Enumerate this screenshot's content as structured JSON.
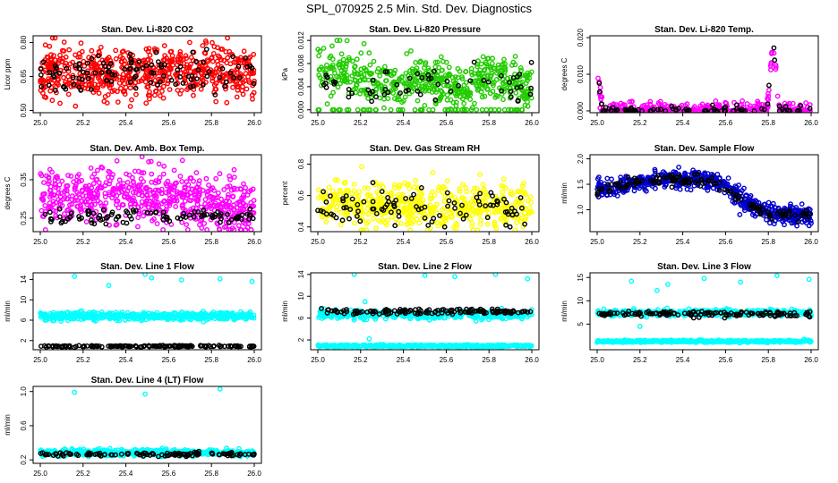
{
  "figure_title": "SPL_070925  2.5 Min. Std. Dev. Diagnostics",
  "colors": {
    "red": "#ff0000",
    "green": "#22cc00",
    "magenta": "#ff00ff",
    "yellow": "#ffff00",
    "blue": "#0000cc",
    "cyan": "#00ffff",
    "black": "#000000"
  },
  "chart_data": [
    {
      "type": "scatter",
      "title": "Stan. Dev. Li-820 CO2",
      "ylabel": "Licor ppm",
      "xlim": [
        25.0,
        26.0
      ],
      "ylim": [
        0.49,
        0.83
      ],
      "xticks": [
        "25.0",
        "25.2",
        "25.4",
        "25.6",
        "25.8",
        "26.0"
      ],
      "yticks": [
        "0.50",
        "0.65",
        "0.80"
      ],
      "series": [
        {
          "name": "main",
          "color": "red",
          "n": 640,
          "mode": "band",
          "base": [
            0.67
          ],
          "spread": 0.06,
          "min": 0.5,
          "max": 0.82,
          "seed": 11
        },
        {
          "name": "overlay",
          "color": "black",
          "n": 110,
          "mode": "band",
          "base": [
            0.66
          ],
          "spread": 0.05,
          "min": 0.52,
          "max": 0.81,
          "seed": 12
        }
      ]
    },
    {
      "type": "scatter",
      "title": "Stan. Dev. Li-820 Pressure",
      "ylabel": "kPa",
      "xlim": [
        25.0,
        26.0
      ],
      "ylim": [
        -0.0005,
        0.0128
      ],
      "xticks": [
        "25.0",
        "25.2",
        "25.4",
        "25.6",
        "25.8",
        "26.0"
      ],
      "yticks": [
        "0.000",
        "0.004",
        "0.008",
        "0.012"
      ],
      "series": [
        {
          "name": "main",
          "color": "green",
          "n": 560,
          "mode": "band",
          "base": [
            0.0075,
            0.0068,
            0.006,
            0.004,
            0.0045,
            0.006,
            0.0045,
            0.0035,
            0.006,
            0.0055,
            0.0035
          ],
          "spread": 0.002,
          "min": 0.0,
          "max": 0.012,
          "seed": 21
        },
        {
          "name": "zero-line",
          "color": "green",
          "n": 50,
          "mode": "band",
          "base": [
            0.0
          ],
          "spread": 0.0,
          "min": 0.0,
          "max": 0.012,
          "seed": 22
        },
        {
          "name": "overlay",
          "color": "black",
          "n": 60,
          "mode": "band",
          "base": [
            0.0048
          ],
          "spread": 0.0015,
          "min": 0.0008,
          "max": 0.012,
          "seed": 23
        }
      ]
    },
    {
      "type": "scatter",
      "title": "Stan. Dev. Li-820 Temp.",
      "ylabel": "degrees C",
      "xlim": [
        25.0,
        26.0
      ],
      "ylim": [
        -0.0005,
        0.0205
      ],
      "xticks": [
        "25.0",
        "25.2",
        "25.4",
        "25.6",
        "25.8",
        "26.0"
      ],
      "yticks": [
        "0.000",
        "0.010",
        "0.020"
      ],
      "series": [
        {
          "name": "main",
          "color": "magenta",
          "n": 420,
          "mode": "band",
          "base": [
            0.011,
            0.006,
            0.001,
            0.0,
            0.0,
            0.0,
            0.0,
            0.0,
            0.0,
            0.0,
            0.0,
            0.0,
            0.0,
            0.0,
            0.0,
            0.0,
            0.0,
            0.0,
            0.0,
            0.0,
            0.0,
            0.0,
            0.0,
            0.0,
            0.0,
            0.0,
            0.0,
            0.0,
            0.0,
            0.0,
            0.0,
            0.0,
            0.0,
            0.0,
            0.0,
            0.0,
            0.0,
            0.0,
            0.0,
            0.0,
            0.0,
            0.0,
            0.0,
            0.0,
            0.0,
            0.0,
            0.0,
            0.0,
            0.0,
            0.0,
            0.0,
            0.0,
            0.0,
            0.0,
            0.0,
            0.0,
            0.0,
            0.0,
            0.0,
            0.0,
            0.0,
            0.0,
            0.0,
            0.0,
            0.0,
            0.0,
            0.0,
            0.0,
            0.0,
            0.0,
            0.0,
            0.0,
            0.003,
            0.012,
            0.019,
            0.013,
            0.003,
            0.0,
            0.0,
            0.0,
            0.0,
            0.0,
            0.0,
            0.0,
            0.0,
            0.0,
            0.0,
            0.0,
            0.0,
            0.0,
            0.0
          ],
          "spread": 0.0012,
          "min": 0.0,
          "max": 0.0198,
          "seed": 31
        },
        {
          "name": "overlay",
          "color": "black",
          "n": 90,
          "mode": "band",
          "base": [
            0.012,
            0.006,
            0.001,
            0.0,
            0.0,
            0.0,
            0.0,
            0.0,
            0.0,
            0.0,
            0.0,
            0.0,
            0.0,
            0.0,
            0.0,
            0.0,
            0.0,
            0.0,
            0.0,
            0.0,
            0.0,
            0.0,
            0.0,
            0.0,
            0.0,
            0.0,
            0.0,
            0.0,
            0.0,
            0.0,
            0.0,
            0.0,
            0.0,
            0.0,
            0.0,
            0.0,
            0.0,
            0.0,
            0.0,
            0.0,
            0.0,
            0.0,
            0.0,
            0.0,
            0.0,
            0.0,
            0.0,
            0.0,
            0.0,
            0.0,
            0.0,
            0.0,
            0.0,
            0.0,
            0.0,
            0.0,
            0.0,
            0.0,
            0.0,
            0.0,
            0.0,
            0.0,
            0.0,
            0.0,
            0.0,
            0.0,
            0.0,
            0.0,
            0.0,
            0.0,
            0.0,
            0.0,
            0.004,
            0.013,
            0.02,
            0.012,
            0.002,
            0.0,
            0.0,
            0.0,
            0.0,
            0.0,
            0.0,
            0.0,
            0.0,
            0.0,
            0.0,
            0.0,
            0.0,
            0.0,
            0.0
          ],
          "spread": 0.0008,
          "min": 0.0,
          "max": 0.0198,
          "seed": 32
        }
      ]
    },
    {
      "type": "scatter",
      "title": "Stan. Dev. Amb. Box Temp.",
      "ylabel": "degrees C",
      "xlim": [
        25.0,
        26.0
      ],
      "ylim": [
        0.215,
        0.415
      ],
      "xticks": [
        "25.0",
        "25.2",
        "25.4",
        "25.6",
        "25.8",
        "26.0"
      ],
      "yticks": [
        "0.25",
        "0.35"
      ],
      "series": [
        {
          "name": "main",
          "color": "magenta",
          "n": 620,
          "mode": "band",
          "base": [
            0.295,
            0.31,
            0.315,
            0.3,
            0.285,
            0.27
          ],
          "spread": 0.035,
          "min": 0.22,
          "max": 0.41,
          "seed": 41
        },
        {
          "name": "overlay",
          "color": "black",
          "n": 100,
          "mode": "band",
          "base": [
            0.255
          ],
          "spread": 0.01,
          "min": 0.235,
          "max": 0.3,
          "seed": 42
        }
      ]
    },
    {
      "type": "scatter",
      "title": "Stan. Dev. Gas Stream RH",
      "ylabel": "percent",
      "xlim": [
        25.0,
        26.0
      ],
      "ylim": [
        0.37,
        0.86
      ],
      "xticks": [
        "25.0",
        "25.2",
        "25.4",
        "25.6",
        "25.8",
        "26.0"
      ],
      "yticks": [
        "0.4",
        "0.6",
        "0.8"
      ],
      "series": [
        {
          "name": "main",
          "color": "yellow",
          "n": 560,
          "mode": "band",
          "base": [
            0.54
          ],
          "spread": 0.07,
          "min": 0.38,
          "max": 0.85,
          "seed": 51
        },
        {
          "name": "overlay",
          "color": "black",
          "n": 95,
          "mode": "band",
          "base": [
            0.52
          ],
          "spread": 0.06,
          "min": 0.4,
          "max": 0.85,
          "seed": 52
        }
      ]
    },
    {
      "type": "scatter",
      "title": "Stan. Dev. Sample Flow",
      "ylabel": "ml/min",
      "xlim": [
        25.0,
        26.0
      ],
      "ylim": [
        0.57,
        2.08
      ],
      "xticks": [
        "25.0",
        "25.2",
        "25.4",
        "25.6",
        "25.8",
        "26.0"
      ],
      "yticks": [
        "1.0",
        "1.5",
        "2.0"
      ],
      "series": [
        {
          "name": "main",
          "color": "blue",
          "n": 620,
          "mode": "band",
          "base": [
            1.4,
            1.45,
            1.55,
            1.6,
            1.6,
            1.6,
            1.5,
            1.15,
            0.95,
            0.9,
            0.88
          ],
          "spread": 0.09,
          "min": 0.6,
          "max": 2.05,
          "seed": 61
        },
        {
          "name": "overlay",
          "color": "black",
          "n": 130,
          "mode": "band",
          "base": [
            1.4,
            1.45,
            1.55,
            1.6,
            1.6,
            1.58,
            1.45,
            1.1,
            0.92,
            0.9,
            0.88
          ],
          "spread": 0.05,
          "min": 0.6,
          "max": 2.05,
          "seed": 62
        }
      ]
    },
    {
      "type": "scatter",
      "title": "Stan. Dev. Line 1 Flow",
      "ylabel": "ml/min",
      "xlim": [
        25.0,
        26.0
      ],
      "ylim": [
        0.2,
        15.3
      ],
      "xticks": [
        "25.0",
        "25.2",
        "25.4",
        "25.6",
        "25.8",
        "26.0"
      ],
      "yticks": [
        "2",
        "6",
        "10",
        "14"
      ],
      "series": [
        {
          "name": "main",
          "color": "cyan",
          "n": 560,
          "mode": "band",
          "base": [
            6.8
          ],
          "spread": 0.35,
          "min": 0.5,
          "max": 15.0,
          "seed": 71
        },
        {
          "name": "outliers",
          "color": "cyan",
          "n": 7,
          "mode": "points",
          "x": [
            25.16,
            25.32,
            25.49,
            25.52,
            25.66,
            25.84,
            25.99
          ],
          "y": [
            14.6,
            12.8,
            15.0,
            14.3,
            13.9,
            14.1,
            13.6
          ],
          "seed": 72
        },
        {
          "name": "overlay",
          "color": "black",
          "n": 150,
          "mode": "band",
          "base": [
            0.9
          ],
          "spread": 0.08,
          "min": 0.5,
          "max": 15.0,
          "seed": 73
        }
      ]
    },
    {
      "type": "scatter",
      "title": "Stan. Dev. Line 2 Flow",
      "ylabel": "ml/min",
      "xlim": [
        25.0,
        26.0
      ],
      "ylim": [
        0.2,
        14.3
      ],
      "xticks": [
        "25.0",
        "25.2",
        "25.4",
        "25.6",
        "25.8",
        "26.0"
      ],
      "yticks": [
        "2",
        "6",
        "10",
        "14"
      ],
      "series": [
        {
          "name": "main",
          "color": "cyan",
          "n": 380,
          "mode": "band",
          "base": [
            6.6
          ],
          "spread": 0.4,
          "min": 0.5,
          "max": 14.0,
          "seed": 81
        },
        {
          "name": "baseline",
          "color": "cyan",
          "n": 420,
          "mode": "band",
          "base": [
            0.9
          ],
          "spread": 0.1,
          "min": 0.5,
          "max": 14.0,
          "seed": 82
        },
        {
          "name": "outliers",
          "color": "cyan",
          "n": 7,
          "mode": "points",
          "x": [
            25.17,
            25.22,
            25.5,
            25.64,
            25.83,
            25.98,
            25.24
          ],
          "y": [
            14.0,
            9.0,
            13.8,
            13.6,
            14.0,
            13.2,
            2.2
          ],
          "seed": 83
        },
        {
          "name": "overlay",
          "color": "black",
          "n": 140,
          "mode": "band",
          "base": [
            7.2
          ],
          "spread": 0.25,
          "min": 0.5,
          "max": 14.0,
          "seed": 84
        }
      ]
    },
    {
      "type": "scatter",
      "title": "Stan. Dev. Line 3 Flow",
      "ylabel": "ml/min",
      "xlim": [
        25.0,
        26.0
      ],
      "ylim": [
        -0.5,
        16.0
      ],
      "xticks": [
        "25.0",
        "25.2",
        "25.4",
        "25.6",
        "25.8",
        "26.0"
      ],
      "yticks": [
        "5",
        "10",
        "15"
      ],
      "series": [
        {
          "name": "main",
          "color": "cyan",
          "n": 380,
          "mode": "band",
          "base": [
            7.4
          ],
          "spread": 0.35,
          "min": 0.5,
          "max": 15.8,
          "seed": 91
        },
        {
          "name": "baseline",
          "color": "cyan",
          "n": 420,
          "mode": "band",
          "base": [
            1.3
          ],
          "spread": 0.12,
          "min": 0.5,
          "max": 15.8,
          "seed": 92
        },
        {
          "name": "outliers",
          "color": "cyan",
          "n": 9,
          "mode": "points",
          "x": [
            25.16,
            25.2,
            25.23,
            25.33,
            25.5,
            25.67,
            25.84,
            25.99,
            25.28
          ],
          "y": [
            14.2,
            4.5,
            6.5,
            13.5,
            14.8,
            14.0,
            15.4,
            14.6,
            12.2
          ],
          "seed": 93
        },
        {
          "name": "overlay",
          "color": "black",
          "n": 140,
          "mode": "band",
          "base": [
            7.2
          ],
          "spread": 0.25,
          "min": 0.5,
          "max": 15.8,
          "seed": 94
        }
      ]
    },
    {
      "type": "scatter",
      "title": "Stan. Dev. Line 4 (LT) Flow",
      "ylabel": "ml/min",
      "xlim": [
        25.0,
        26.0
      ],
      "ylim": [
        0.16,
        1.06
      ],
      "xticks": [
        "25.0",
        "25.2",
        "25.4",
        "25.6",
        "25.8",
        "26.0"
      ],
      "yticks": [
        "0.2",
        "0.6",
        "1.0"
      ],
      "series": [
        {
          "name": "main",
          "color": "cyan",
          "n": 560,
          "mode": "band",
          "base": [
            0.285
          ],
          "spread": 0.018,
          "min": 0.2,
          "max": 1.05,
          "seed": 101
        },
        {
          "name": "outliers",
          "color": "cyan",
          "n": 3,
          "mode": "points",
          "x": [
            25.16,
            25.49,
            25.84
          ],
          "y": [
            0.99,
            0.97,
            1.03
          ],
          "seed": 102
        },
        {
          "name": "overlay",
          "color": "black",
          "n": 120,
          "mode": "band",
          "base": [
            0.265
          ],
          "spread": 0.012,
          "min": 0.2,
          "max": 1.05,
          "seed": 103
        }
      ]
    }
  ]
}
